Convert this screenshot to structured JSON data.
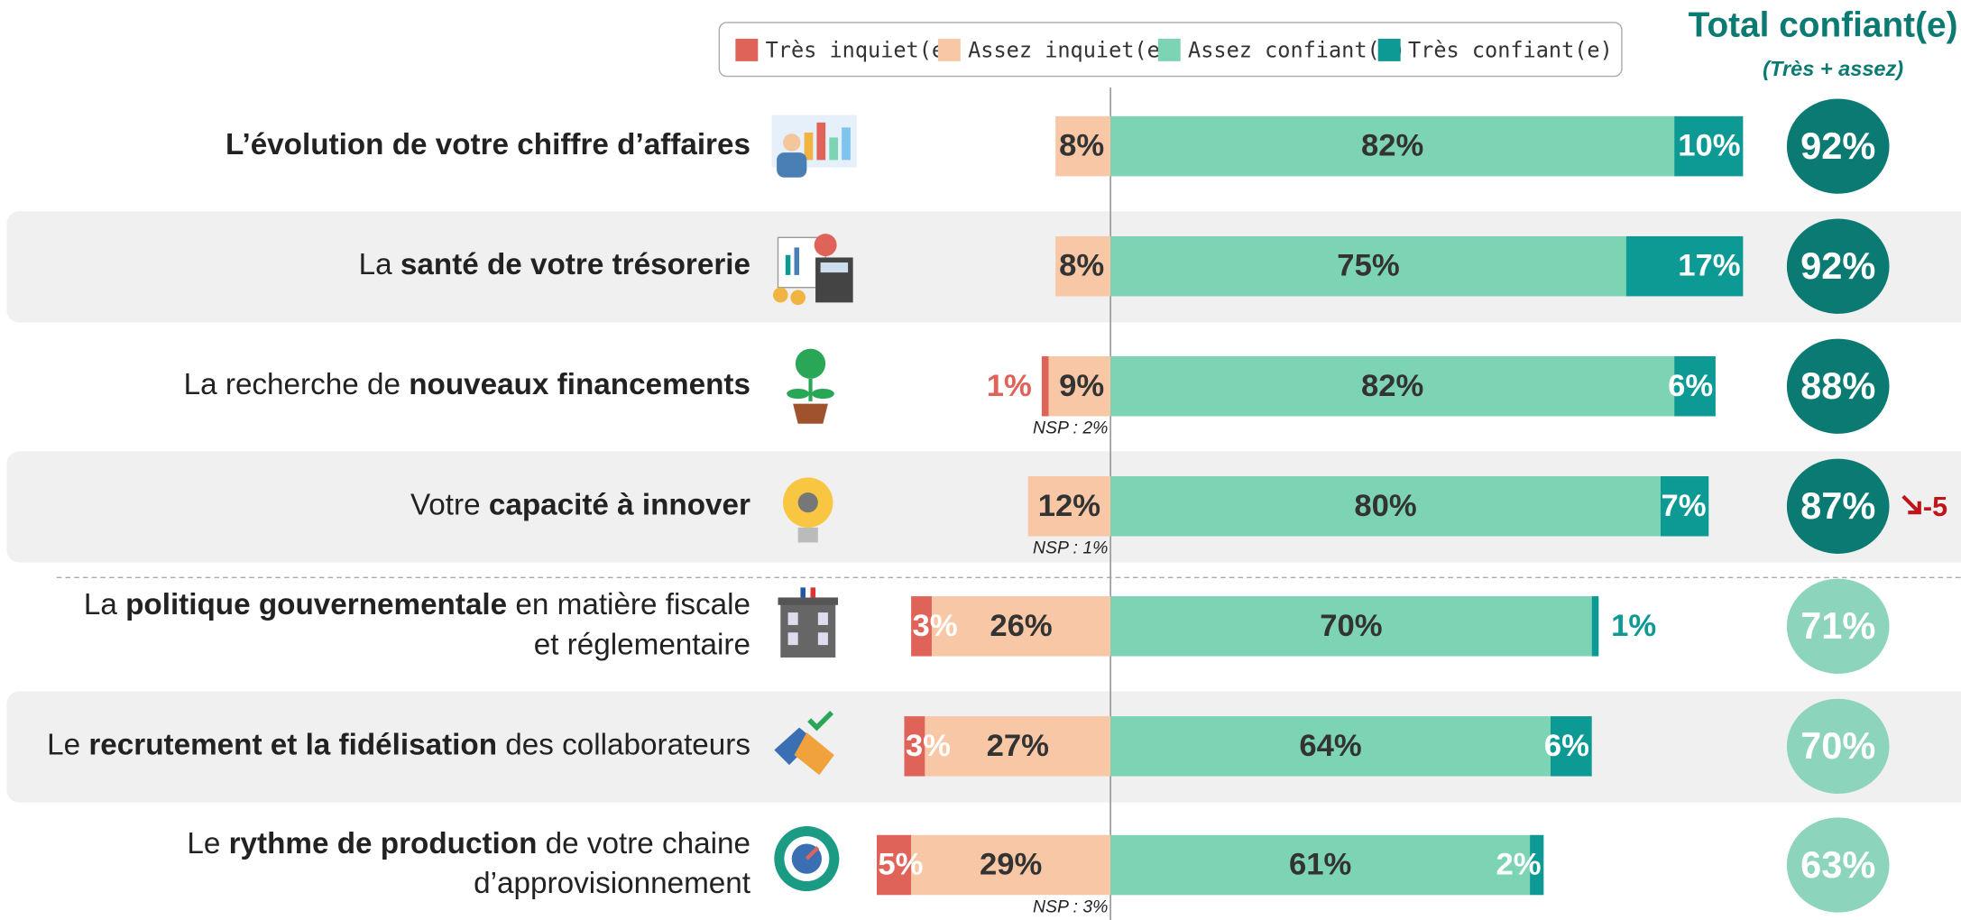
{
  "chart_data": {
    "type": "diverging_bar",
    "title": "Total confiant(e)",
    "subtitle": "(Très + assez)",
    "categories": [
      [
        [
          {
            "text": "L’évolution de votre chiffre d’affaires",
            "bold": true
          }
        ]
      ],
      [
        [
          {
            "text": "La "
          },
          {
            "text": "santé de votre trésorerie",
            "bold": true
          }
        ]
      ],
      [
        [
          {
            "text": "La recherche de "
          },
          {
            "text": "nouveaux financements",
            "bold": true
          }
        ]
      ],
      [
        [
          {
            "text": "Votre "
          },
          {
            "text": "capacité à innover",
            "bold": true
          }
        ]
      ],
      [
        [
          {
            "text": "La "
          },
          {
            "text": "politique gouvernementale",
            "bold": true
          },
          {
            "text": " en matière fiscale"
          }
        ],
        [
          {
            "text": "et réglementaire"
          }
        ]
      ],
      [
        [
          {
            "text": "Le "
          },
          {
            "text": "recrutement et la fidélisation",
            "bold": true
          },
          {
            "text": " des collaborateurs"
          }
        ]
      ],
      [
        [
          {
            "text": "Le "
          },
          {
            "text": "rythme de production",
            "bold": true
          },
          {
            "text": " de votre chaine"
          }
        ],
        [
          {
            "text": "d’approvisionnement"
          }
        ]
      ]
    ],
    "series": [
      {
        "name": "Très inquiet(e)",
        "color": "#e0635a",
        "side": "negative",
        "label_color": "#ffffff",
        "outside_color": "#e0635a",
        "values": [
          null,
          null,
          1,
          null,
          3,
          3,
          5
        ],
        "value_labels": [
          null,
          null,
          "1%",
          null,
          "3%",
          "3%",
          "5%"
        ]
      },
      {
        "name": "Assez inquiet(e)",
        "color": "#f8c8a6",
        "side": "negative",
        "label_color": "#333333",
        "values": [
          8,
          8,
          9,
          12,
          26,
          27,
          29
        ],
        "value_labels": [
          "8%",
          "8%",
          "9%",
          "12%",
          "26%",
          "27%",
          "29%"
        ]
      },
      {
        "name": "Assez confiant(e)",
        "color": "#7dd4b5",
        "side": "positive",
        "label_color": "#333333",
        "values": [
          82,
          75,
          82,
          80,
          70,
          64,
          61
        ],
        "value_labels": [
          "82%",
          "75%",
          "82%",
          "80%",
          "70%",
          "64%",
          "61%"
        ]
      },
      {
        "name": "Très confiant(e)",
        "color": "#0e9a94",
        "side": "positive",
        "label_color": "#ffffff",
        "outside_color": "#0e9a94",
        "values": [
          10,
          17,
          6,
          7,
          1,
          6,
          2
        ],
        "value_labels": [
          "10%",
          "17%",
          "6%",
          "7%",
          "1%",
          "6%",
          "2%"
        ]
      }
    ],
    "totals": [
      92,
      92,
      88,
      87,
      71,
      70,
      63
    ],
    "total_labels": [
      "92%",
      "92%",
      "88%",
      "87%",
      "71%",
      "70%",
      "63%"
    ],
    "total_colors": [
      "#0b7a72",
      "#0b7a72",
      "#0b7a72",
      "#0b7a72",
      "#8dd4bd",
      "#8dd4bd",
      "#8dd4bd"
    ],
    "nsp": [
      null,
      null,
      "NSP : 2%",
      "NSP : 1%",
      null,
      null,
      "NSP : 3%"
    ],
    "changes": [
      null,
      null,
      null,
      -5,
      null,
      null,
      null
    ],
    "xlim": [
      -40,
      100
    ]
  }
}
